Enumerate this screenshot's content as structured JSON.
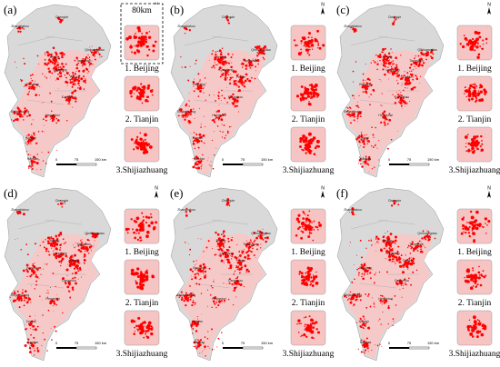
{
  "panel_labels": [
    "(a)",
    "(b)",
    "(c)",
    "(d)",
    "(e)",
    "(f)"
  ],
  "cities": [
    "Zhangjiakou",
    "Chengde",
    "Qinhuangdao",
    "Beijing",
    "Tangshan",
    "Langfang",
    "Tianjin",
    "Baoding",
    "Cangzhou",
    "Shijiazhuang",
    "Hengshui",
    "Xingtai",
    "Handan"
  ],
  "insets": [
    "1. Beijing",
    "2. Tianjin",
    "3.Shijiazhuang"
  ],
  "inset_extent": "80km",
  "scale_bar": [
    "0",
    "75",
    "150 km"
  ],
  "north": "N"
}
